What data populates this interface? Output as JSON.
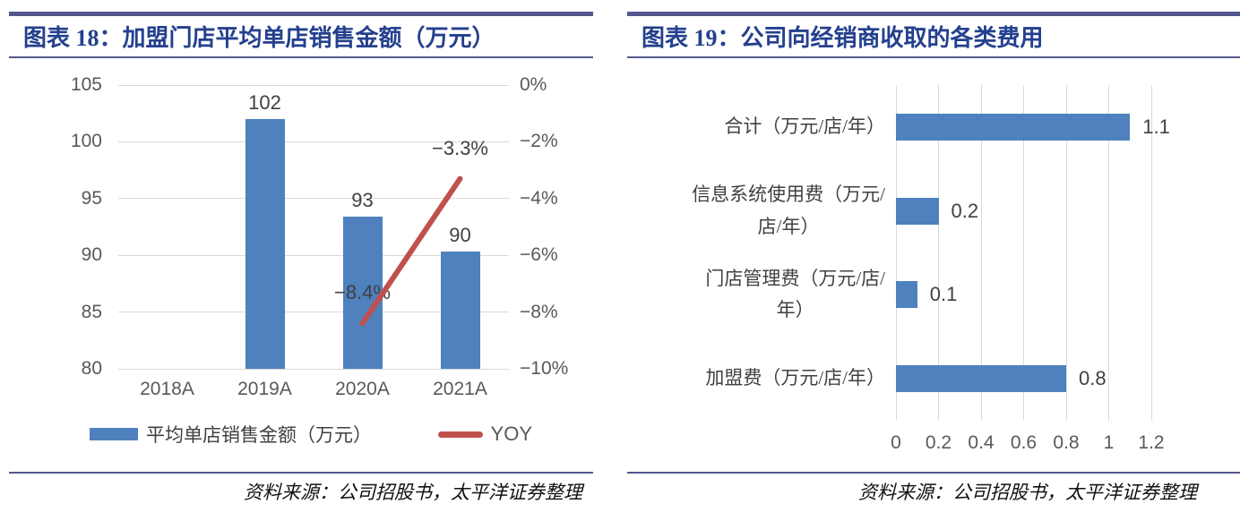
{
  "colors": {
    "accent_rule": "#54578F",
    "title_text": "#24408E",
    "bar_blue": "#4E81BD",
    "line_red": "#C0504D",
    "gridline": "#D9D9D9",
    "tick_text": "#595959",
    "data_label_text": "#404040"
  },
  "chart_data": [
    {
      "type": "bar",
      "subtype": "vertical bars with secondary-axis line (combo)",
      "title": "图表 18：加盟门店平均单店销售金额（万元）",
      "source": "资料来源：公司招股书，太平洋证券整理",
      "categories": [
        "2018A",
        "2019A",
        "2020A",
        "2021A"
      ],
      "series": [
        {
          "name": "平均单店销售金额（万元）",
          "kind": "bar",
          "axis": "left",
          "color": "#4E81BD",
          "values": [
            null,
            102,
            93.4,
            90.3
          ],
          "labels": [
            null,
            "102",
            "93",
            "90"
          ]
        },
        {
          "name": "YOY",
          "kind": "line",
          "axis": "right",
          "color": "#C0504D",
          "values": [
            null,
            null,
            -8.4,
            -3.3
          ],
          "labels": [
            null,
            null,
            "−8.4%",
            "−3.3%"
          ]
        }
      ],
      "axes": {
        "left": {
          "min": 80,
          "max": 105,
          "ticks": [
            "105",
            "100",
            "95",
            "90",
            "85",
            "80"
          ]
        },
        "right": {
          "min": -10,
          "max": 0,
          "ticks": [
            "0%",
            "−2%",
            "−4%",
            "−6%",
            "−8%",
            "−10%"
          ]
        }
      },
      "grid": true,
      "legend_position": "bottom",
      "legend": [
        {
          "label": "平均单店销售金额（万元）",
          "swatch": "bar",
          "color": "#4E81BD"
        },
        {
          "label": "YOY",
          "swatch": "line",
          "color": "#C0504D"
        }
      ]
    },
    {
      "type": "bar",
      "subtype": "horizontal bars",
      "title": "图表 19：公司向经销商收取的各类费用",
      "source": "资料来源：公司招股书，太平洋证券整理",
      "categories": [
        "合计（万元/店/年）",
        "信息系统使用费（万元/店/年）",
        "门店管理费（万元/店/年）",
        "加盟费（万元/店/年）"
      ],
      "categories_lines": [
        [
          "合计（万元/店/年）"
        ],
        [
          "信息系统使用费（万元/",
          "店/年）"
        ],
        [
          "门店管理费（万元/店/",
          "年）"
        ],
        [
          "加盟费（万元/店/年）"
        ]
      ],
      "values": [
        1.1,
        0.2,
        0.1,
        0.8
      ],
      "labels": [
        "1.1",
        "0.2",
        "0.1",
        "0.8"
      ],
      "bar_color": "#4E81BD",
      "xlim": [
        0,
        1.2
      ],
      "xticks": [
        "0",
        "0.2",
        "0.4",
        "0.6",
        "0.8",
        "1",
        "1.2"
      ],
      "grid": true,
      "legend_position": "none"
    }
  ]
}
